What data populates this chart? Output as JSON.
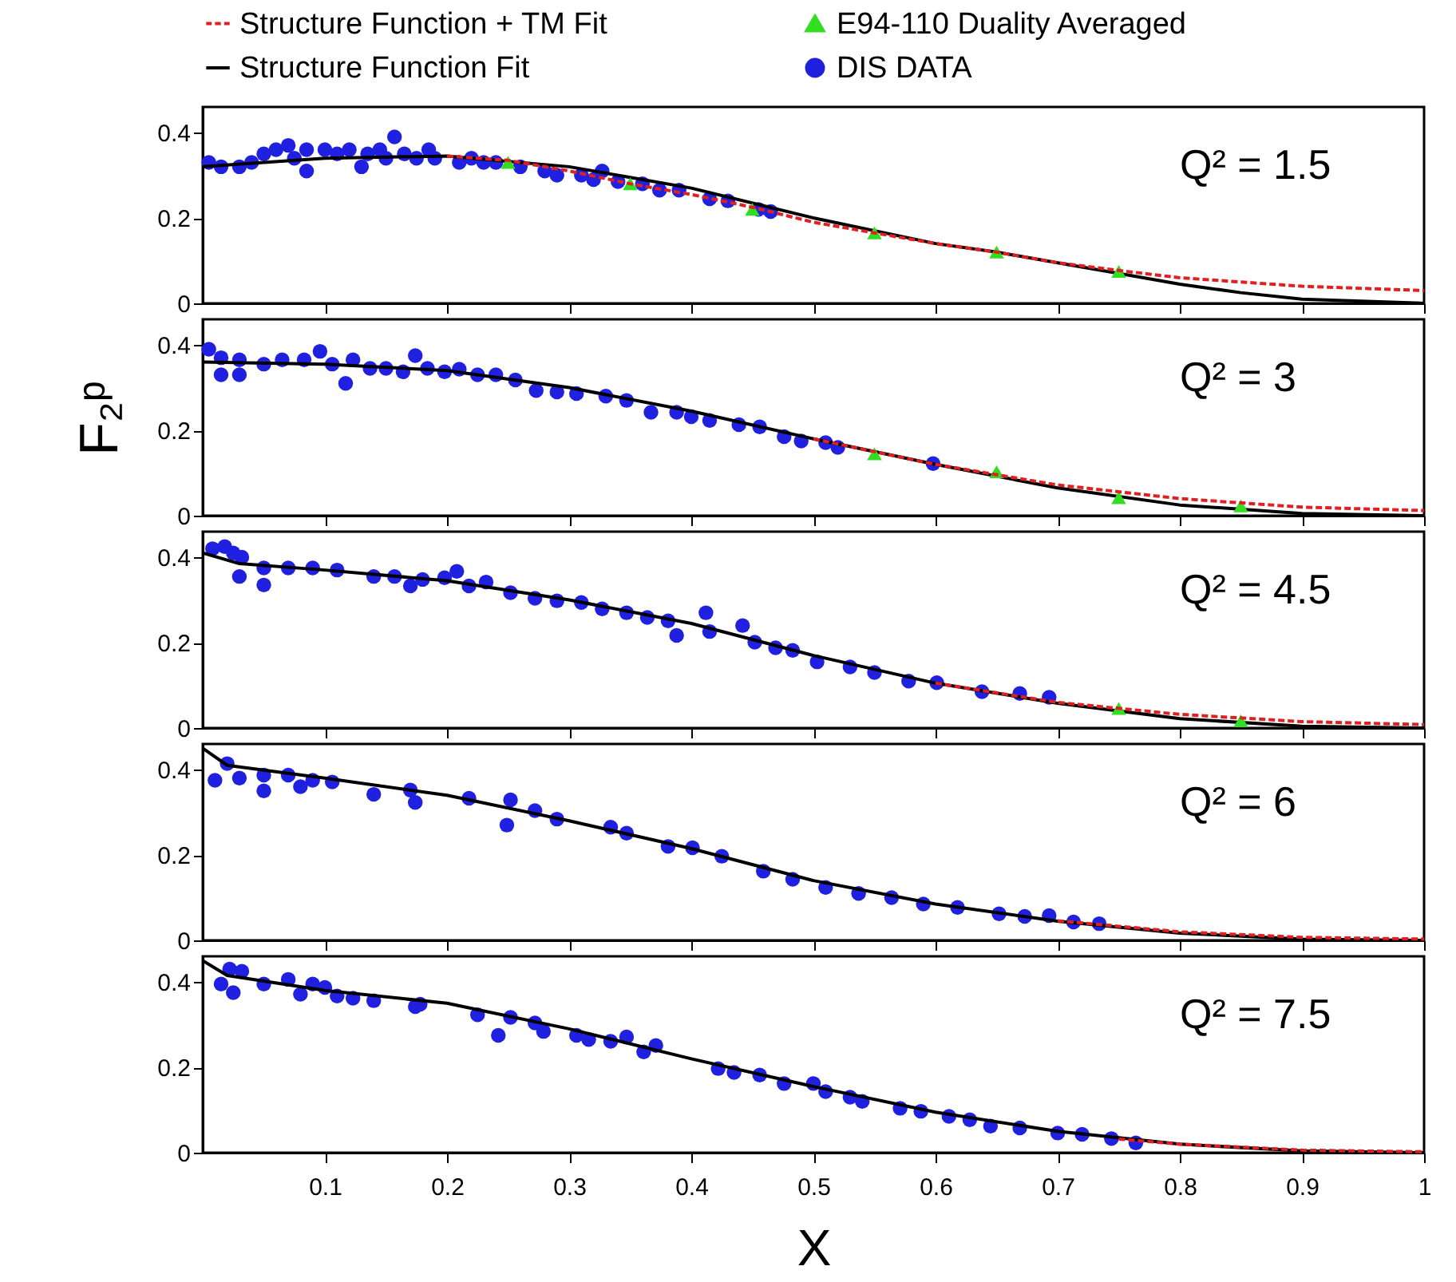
{
  "chart_data": [
    {
      "type": "scatter",
      "xlim": [
        0,
        1
      ],
      "ylim": [
        0,
        0.46
      ],
      "xticks": [
        0.1,
        0.2,
        0.3,
        0.4,
        0.5,
        0.6,
        0.7,
        0.8,
        0.9,
        1
      ],
      "yticks": [
        0,
        0.2,
        0.4
      ],
      "tick_labels": "y",
      "legend": "top",
      "annotations": [
        "Q² = 1.5"
      ],
      "series": [
        {
          "name": "Structure Function + TM Fit",
          "type": "line",
          "line_style": "dashed",
          "color": "#e02020",
          "x": [
            0.2,
            0.25,
            0.3,
            0.35,
            0.4,
            0.45,
            0.5,
            0.55,
            0.6,
            0.65,
            0.7,
            0.75,
            0.8,
            0.9,
            1
          ],
          "values": [
            0.345,
            0.335,
            0.31,
            0.28,
            0.255,
            0.225,
            0.19,
            0.165,
            0.14,
            0.12,
            0.095,
            0.077,
            0.06,
            0.04,
            0.03
          ]
        },
        {
          "name": "E94-110 Duality Averaged",
          "marker": "triangle",
          "color": "#33dd22",
          "x": [
            0.25,
            0.35,
            0.45,
            0.55,
            0.65,
            0.75
          ],
          "values": [
            0.33,
            0.28,
            0.22,
            0.165,
            0.12,
            0.075
          ]
        },
        {
          "name": "Structure Function Fit",
          "type": "line",
          "line_style": "solid",
          "color": "#000000",
          "x": [
            0,
            0.1,
            0.2,
            0.3,
            0.35,
            0.4,
            0.5,
            0.6,
            0.65,
            0.7,
            0.75,
            0.8,
            0.85,
            0.9,
            1
          ],
          "values": [
            0.32,
            0.34,
            0.345,
            0.32,
            0.295,
            0.27,
            0.2,
            0.14,
            0.12,
            0.095,
            0.07,
            0.045,
            0.025,
            0.01,
            0
          ]
        },
        {
          "name": "DIS DATA",
          "marker": "circle",
          "color": "#2020e0",
          "x": [
            0.005,
            0.015,
            0.03,
            0.04,
            0.05,
            0.06,
            0.07,
            0.075,
            0.085,
            0.085,
            0.1,
            0.11,
            0.12,
            0.13,
            0.135,
            0.145,
            0.15,
            0.157,
            0.165,
            0.175,
            0.185,
            0.19,
            0.21,
            0.22,
            0.23,
            0.24,
            0.26,
            0.28,
            0.29,
            0.31,
            0.32,
            0.327,
            0.34,
            0.36,
            0.374,
            0.39,
            0.415,
            0.43,
            0.455,
            0.465
          ],
          "values": [
            0.33,
            0.32,
            0.32,
            0.33,
            0.35,
            0.36,
            0.37,
            0.34,
            0.36,
            0.31,
            0.36,
            0.35,
            0.36,
            0.32,
            0.35,
            0.36,
            0.34,
            0.39,
            0.35,
            0.34,
            0.36,
            0.34,
            0.33,
            0.34,
            0.33,
            0.33,
            0.32,
            0.31,
            0.3,
            0.3,
            0.29,
            0.31,
            0.285,
            0.28,
            0.265,
            0.265,
            0.245,
            0.24,
            0.22,
            0.215
          ]
        }
      ]
    },
    {
      "type": "scatter",
      "xlim": [
        0,
        1
      ],
      "ylim": [
        0,
        0.46
      ],
      "xticks": [
        0.1,
        0.2,
        0.3,
        0.4,
        0.5,
        0.6,
        0.7,
        0.8,
        0.9,
        1
      ],
      "yticks": [
        0,
        0.2,
        0.4
      ],
      "tick_labels": "y",
      "ylabel": "F₂ᵖ",
      "annotations": [
        "Q² = 3"
      ],
      "series": [
        {
          "type": "line",
          "line_style": "dashed",
          "color": "#e02020",
          "x": [
            0.5,
            0.6,
            0.7,
            0.8,
            0.9,
            1
          ],
          "values": [
            0.18,
            0.12,
            0.072,
            0.04,
            0.02,
            0.012
          ]
        },
        {
          "marker": "triangle",
          "color": "#33dd22",
          "x": [
            0.55,
            0.65,
            0.75,
            0.85
          ],
          "values": [
            0.145,
            0.103,
            0.042,
            0.023
          ]
        },
        {
          "type": "line",
          "line_style": "solid",
          "color": "#000000",
          "x": [
            0,
            0.1,
            0.2,
            0.3,
            0.4,
            0.5,
            0.6,
            0.7,
            0.8,
            0.9,
            1
          ],
          "values": [
            0.36,
            0.355,
            0.34,
            0.3,
            0.245,
            0.18,
            0.12,
            0.065,
            0.025,
            0.005,
            0
          ]
        },
        {
          "marker": "circle",
          "color": "#2020e0",
          "x": [
            0.005,
            0.015,
            0.015,
            0.03,
            0.03,
            0.05,
            0.065,
            0.083,
            0.096,
            0.106,
            0.117,
            0.123,
            0.137,
            0.15,
            0.164,
            0.174,
            0.184,
            0.198,
            0.21,
            0.225,
            0.24,
            0.256,
            0.273,
            0.29,
            0.306,
            0.33,
            0.347,
            0.367,
            0.388,
            0.4,
            0.415,
            0.439,
            0.456,
            0.476,
            0.49,
            0.51,
            0.52,
            0.598
          ],
          "values": [
            0.39,
            0.37,
            0.33,
            0.33,
            0.365,
            0.355,
            0.365,
            0.365,
            0.385,
            0.355,
            0.31,
            0.365,
            0.345,
            0.345,
            0.337,
            0.375,
            0.345,
            0.337,
            0.343,
            0.33,
            0.33,
            0.318,
            0.293,
            0.29,
            0.286,
            0.28,
            0.27,
            0.242,
            0.242,
            0.232,
            0.223,
            0.213,
            0.208,
            0.185,
            0.175,
            0.171,
            0.16,
            0.122
          ]
        }
      ]
    },
    {
      "type": "scatter",
      "xlim": [
        0,
        1
      ],
      "ylim": [
        0,
        0.46
      ],
      "xticks": [
        0.1,
        0.2,
        0.3,
        0.4,
        0.5,
        0.6,
        0.7,
        0.8,
        0.9,
        1
      ],
      "yticks": [
        0,
        0.2,
        0.4
      ],
      "tick_labels": "y",
      "annotations": [
        "Q² = 4.5"
      ],
      "series": [
        {
          "type": "line",
          "line_style": "dashed",
          "color": "#e02020",
          "x": [
            0.6,
            0.7,
            0.8,
            0.9,
            1
          ],
          "values": [
            0.105,
            0.06,
            0.032,
            0.015,
            0.008
          ]
        },
        {
          "marker": "triangle",
          "color": "#33dd22",
          "x": [
            0.75,
            0.85
          ],
          "values": [
            0.046,
            0.017
          ]
        },
        {
          "type": "line",
          "line_style": "solid",
          "color": "#000000",
          "x": [
            0,
            0.03,
            0.1,
            0.2,
            0.3,
            0.4,
            0.5,
            0.6,
            0.7,
            0.8,
            0.9,
            1
          ],
          "values": [
            0.41,
            0.385,
            0.37,
            0.345,
            0.3,
            0.245,
            0.17,
            0.105,
            0.058,
            0.022,
            0.004,
            0
          ]
        },
        {
          "marker": "circle",
          "color": "#2020e0",
          "x": [
            0.008,
            0.018,
            0.025,
            0.032,
            0.03,
            0.05,
            0.05,
            0.07,
            0.09,
            0.11,
            0.14,
            0.157,
            0.17,
            0.18,
            0.198,
            0.208,
            0.218,
            0.232,
            0.252,
            0.272,
            0.29,
            0.31,
            0.327,
            0.347,
            0.364,
            0.381,
            0.388,
            0.412,
            0.415,
            0.442,
            0.452,
            0.469,
            0.483,
            0.503,
            0.53,
            0.55,
            0.578,
            0.601,
            0.638,
            0.669,
            0.693
          ],
          "values": [
            0.42,
            0.425,
            0.41,
            0.4,
            0.355,
            0.335,
            0.375,
            0.375,
            0.375,
            0.37,
            0.355,
            0.355,
            0.333,
            0.348,
            0.352,
            0.367,
            0.333,
            0.342,
            0.317,
            0.304,
            0.298,
            0.294,
            0.279,
            0.27,
            0.259,
            0.251,
            0.217,
            0.27,
            0.226,
            0.24,
            0.201,
            0.188,
            0.182,
            0.155,
            0.143,
            0.13,
            0.11,
            0.106,
            0.085,
            0.081,
            0.072
          ]
        }
      ]
    },
    {
      "type": "scatter",
      "xlim": [
        0,
        1
      ],
      "ylim": [
        0,
        0.46
      ],
      "xticks": [
        0.1,
        0.2,
        0.3,
        0.4,
        0.5,
        0.6,
        0.7,
        0.8,
        0.9,
        1
      ],
      "yticks": [
        0,
        0.2,
        0.4
      ],
      "tick_labels": "y",
      "annotations": [
        "Q² = 6"
      ],
      "series": [
        {
          "type": "line",
          "line_style": "dashed",
          "color": "#e02020",
          "x": [
            0.7,
            0.8,
            0.9,
            1
          ],
          "values": [
            0.046,
            0.02,
            0.007,
            0.003
          ]
        },
        {
          "type": "line",
          "line_style": "solid",
          "color": "#000000",
          "x": [
            0,
            0.02,
            0.1,
            0.2,
            0.3,
            0.4,
            0.5,
            0.6,
            0.7,
            0.8,
            0.9,
            1
          ],
          "values": [
            0.45,
            0.41,
            0.38,
            0.34,
            0.28,
            0.215,
            0.14,
            0.085,
            0.045,
            0.017,
            0.003,
            0
          ]
        },
        {
          "marker": "circle",
          "color": "#2020e0",
          "x": [
            0.01,
            0.02,
            0.03,
            0.05,
            0.05,
            0.07,
            0.08,
            0.09,
            0.106,
            0.14,
            0.17,
            0.174,
            0.218,
            0.249,
            0.252,
            0.272,
            0.29,
            0.334,
            0.347,
            0.381,
            0.401,
            0.425,
            0.459,
            0.483,
            0.51,
            0.537,
            0.564,
            0.59,
            0.618,
            0.652,
            0.673,
            0.693,
            0.713,
            0.734
          ],
          "values": [
            0.375,
            0.414,
            0.38,
            0.387,
            0.35,
            0.387,
            0.36,
            0.375,
            0.371,
            0.342,
            0.352,
            0.323,
            0.333,
            0.27,
            0.329,
            0.304,
            0.284,
            0.265,
            0.251,
            0.22,
            0.217,
            0.197,
            0.162,
            0.143,
            0.124,
            0.11,
            0.1,
            0.085,
            0.077,
            0.062,
            0.056,
            0.058,
            0.043,
            0.039
          ]
        }
      ]
    },
    {
      "type": "scatter",
      "xlim": [
        0,
        1
      ],
      "ylim": [
        0,
        0.46
      ],
      "xticks": [
        0.1,
        0.2,
        0.3,
        0.4,
        0.5,
        0.6,
        0.7,
        0.8,
        0.9,
        1
      ],
      "yticks": [
        0,
        0.2,
        0.4
      ],
      "xlabel": "X",
      "annotations": [
        "Q² = 7.5"
      ],
      "series": [
        {
          "type": "line",
          "line_style": "dashed",
          "color": "#e02020",
          "x": [
            0.75,
            0.8,
            0.9,
            1
          ],
          "values": [
            0.032,
            0.02,
            0.006,
            0.002
          ]
        },
        {
          "type": "line",
          "line_style": "solid",
          "color": "#000000",
          "x": [
            0,
            0.02,
            0.1,
            0.2,
            0.3,
            0.4,
            0.5,
            0.6,
            0.7,
            0.8,
            0.9,
            1
          ],
          "values": [
            0.45,
            0.415,
            0.38,
            0.35,
            0.29,
            0.22,
            0.155,
            0.095,
            0.05,
            0.02,
            0.004,
            0
          ]
        },
        {
          "marker": "circle",
          "color": "#2020e0",
          "x": [
            0.015,
            0.022,
            0.025,
            0.032,
            0.05,
            0.07,
            0.08,
            0.09,
            0.1,
            0.11,
            0.123,
            0.14,
            0.174,
            0.178,
            0.225,
            0.242,
            0.252,
            0.272,
            0.279,
            0.306,
            0.316,
            0.334,
            0.347,
            0.361,
            0.371,
            0.422,
            0.435,
            0.456,
            0.476,
            0.5,
            0.51,
            0.53,
            0.54,
            0.571,
            0.588,
            0.611,
            0.628,
            0.645,
            0.669,
            0.7,
            0.72,
            0.744,
            0.764
          ],
          "values": [
            0.395,
            0.43,
            0.375,
            0.425,
            0.395,
            0.406,
            0.371,
            0.395,
            0.387,
            0.367,
            0.362,
            0.356,
            0.342,
            0.348,
            0.323,
            0.275,
            0.317,
            0.304,
            0.284,
            0.275,
            0.265,
            0.261,
            0.271,
            0.236,
            0.251,
            0.197,
            0.188,
            0.182,
            0.162,
            0.162,
            0.143,
            0.13,
            0.12,
            0.104,
            0.097,
            0.085,
            0.077,
            0.062,
            0.058,
            0.046,
            0.043,
            0.033,
            0.023
          ]
        }
      ]
    }
  ]
}
